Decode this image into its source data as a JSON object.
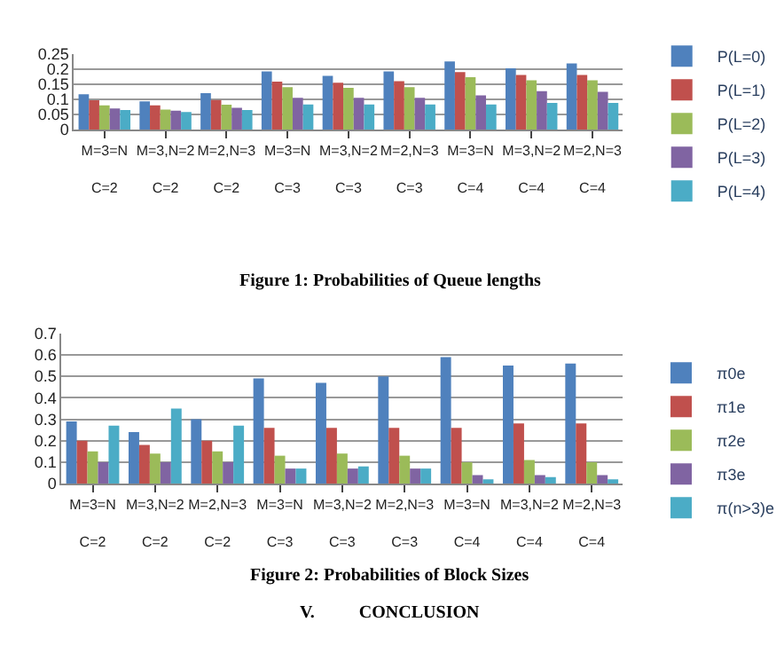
{
  "chart_data": [
    {
      "type": "bar",
      "categories": [
        "M=3=N\nC=2",
        "M=3,N=2\nC=2",
        "M=2,N=3\nC=2",
        "M=3=N\nC=3",
        "M=3,N=2\nC=3",
        "M=2,N=3\nC=3",
        "M=3=N\nC=4",
        "M=3,N=2\nC=4",
        "M=2,N=3\nC=4"
      ],
      "ylim": [
        0,
        0.25
      ],
      "yticks": [
        0,
        0.05,
        0.1,
        0.15,
        0.2,
        0.25
      ],
      "grid": "y",
      "legend": "right",
      "annotations": [
        "Figure 1: Probabilities of Queue lengths"
      ],
      "series": [
        {
          "name": "P(L=0)",
          "color": "#4f81bd",
          "values": [
            0.117,
            0.093,
            0.12,
            0.192,
            0.177,
            0.192,
            0.225,
            0.202,
            0.218
          ]
        },
        {
          "name": "P(L=1)",
          "color": "#c0504d",
          "values": [
            0.097,
            0.08,
            0.098,
            0.158,
            0.155,
            0.16,
            0.19,
            0.18,
            0.18
          ]
        },
        {
          "name": "P(L=2)",
          "color": "#9bbb59",
          "values": [
            0.08,
            0.066,
            0.082,
            0.14,
            0.138,
            0.14,
            0.173,
            0.163,
            0.163
          ]
        },
        {
          "name": "P(L=3)",
          "color": "#8064a2",
          "values": [
            0.07,
            0.063,
            0.072,
            0.105,
            0.105,
            0.105,
            0.113,
            0.127,
            0.125
          ]
        },
        {
          "name": "P(L=4)",
          "color": "#4bacc6",
          "values": [
            0.065,
            0.058,
            0.065,
            0.083,
            0.083,
            0.083,
            0.083,
            0.088,
            0.088
          ]
        }
      ]
    },
    {
      "type": "bar",
      "categories": [
        "M=3=N\nC=2",
        "M=3,N=2\nC=2",
        "M=2,N=3\nC=2",
        "M=3=N\nC=3",
        "M=3,N=2\nC=3",
        "M=2,N=3\nC=3",
        "M=3=N\nC=4",
        "M=3,N=2\nC=4",
        "M=2,N=3\nC=4"
      ],
      "ylim": [
        0,
        0.7
      ],
      "yticks": [
        0,
        0.1,
        0.2,
        0.3,
        0.4,
        0.5,
        0.6,
        0.7
      ],
      "grid": "y",
      "legend": "right",
      "annotations": [
        "Figure 2: Probabilities of Block Sizes",
        "V.          CONCLUSION"
      ],
      "series": [
        {
          "name": "π0e",
          "color": "#4f81bd",
          "values": [
            0.29,
            0.24,
            0.3,
            0.49,
            0.47,
            0.5,
            0.59,
            0.55,
            0.56
          ]
        },
        {
          "name": "π1e",
          "color": "#c0504d",
          "values": [
            0.2,
            0.18,
            0.2,
            0.26,
            0.26,
            0.26,
            0.26,
            0.28,
            0.28
          ]
        },
        {
          "name": "π2e",
          "color": "#9bbb59",
          "values": [
            0.15,
            0.14,
            0.15,
            0.13,
            0.14,
            0.13,
            0.1,
            0.11,
            0.1
          ]
        },
        {
          "name": "π3e",
          "color": "#8064a2",
          "values": [
            0.1,
            0.1,
            0.1,
            0.07,
            0.07,
            0.07,
            0.04,
            0.04,
            0.04
          ]
        },
        {
          "name": "π(n>3)e",
          "color": "#4bacc6",
          "values": [
            0.27,
            0.35,
            0.27,
            0.07,
            0.08,
            0.07,
            0.02,
            0.03,
            0.02
          ]
        }
      ]
    }
  ]
}
